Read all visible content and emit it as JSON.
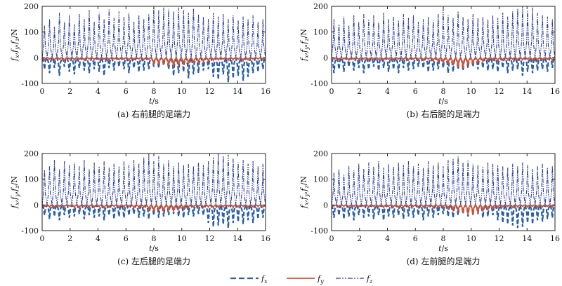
{
  "chart_data": [
    {
      "type": "line",
      "caption": "(a) 右前腿的足端力",
      "xlabel": "t/s",
      "ylabel": "fx,fy,fz/N",
      "xlim": [
        0,
        16
      ],
      "ylim": [
        -100,
        200
      ],
      "xticks": [
        0,
        2,
        4,
        6,
        8,
        10,
        12,
        14,
        16
      ],
      "yticks": [
        -100,
        0,
        100,
        200
      ],
      "fx_peaks": [
        -45,
        -60,
        -40,
        -70,
        -35,
        -55,
        -65,
        -40,
        -50,
        -60,
        -45,
        -55,
        -70,
        -40,
        -50,
        -35,
        -45,
        -60,
        -40,
        -55,
        -50,
        -45,
        -35,
        -40,
        -30,
        -45,
        -70,
        -60,
        -55,
        -80,
        -65,
        -60,
        -50,
        -45,
        -75,
        -85,
        -65,
        -95,
        -80,
        -70,
        -90,
        -75,
        -60,
        -55,
        -45
      ],
      "fy_peaks": [
        -8,
        -5,
        -10,
        -6,
        -12,
        -5,
        -8,
        -6,
        -10,
        -5,
        -8,
        -7,
        -6,
        -9,
        -5,
        -8,
        -6,
        -10,
        -7,
        -5,
        -9,
        -6,
        -28,
        -25,
        -20,
        -30,
        -35,
        -32,
        -28,
        -25,
        -22,
        -18,
        -15,
        -12,
        -10,
        -8,
        -6,
        -10,
        -8,
        -6,
        -12,
        -8,
        -6,
        -5,
        -8
      ],
      "fz_peaks": [
        125,
        150,
        120,
        175,
        140,
        165,
        130,
        170,
        150,
        185,
        140,
        175,
        150,
        190,
        155,
        180,
        160,
        175,
        140,
        165,
        150,
        170,
        195,
        185,
        195,
        190,
        180,
        195,
        185,
        175,
        190,
        170,
        160,
        150,
        175,
        160,
        170,
        150,
        165,
        145,
        160,
        150,
        165,
        140,
        150
      ]
    },
    {
      "type": "line",
      "caption": "(b) 右后腿的足端力",
      "xlabel": "t/s",
      "ylabel": "fx,fy,fz/N",
      "xlim": [
        0,
        16
      ],
      "ylim": [
        -100,
        200
      ],
      "xticks": [
        0,
        2,
        4,
        6,
        8,
        10,
        12,
        14,
        16
      ],
      "yticks": [
        -100,
        0,
        100,
        200
      ],
      "fx_peaks": [
        -60,
        -45,
        -55,
        -35,
        -50,
        -40,
        -60,
        -45,
        -35,
        -50,
        -40,
        -55,
        -45,
        -60,
        -40,
        -50,
        -45,
        -35,
        -40,
        -55,
        -50,
        -45,
        -40,
        -60,
        -55,
        -45,
        -50,
        -40,
        -35,
        -45,
        -40,
        -50,
        -45,
        -55,
        -40,
        -60,
        -50,
        -45,
        -70,
        -55,
        -60,
        -50,
        -45,
        -55,
        -40
      ],
      "fy_peaks": [
        -6,
        -8,
        -5,
        -10,
        -6,
        -8,
        -5,
        -9,
        -6,
        -7,
        -10,
        -6,
        -8,
        -5,
        -7,
        -9,
        -6,
        -8,
        -10,
        -6,
        -12,
        -15,
        -20,
        -25,
        -30,
        -35,
        -40,
        -30,
        -25,
        -20,
        -15,
        -10,
        -8,
        -12,
        -10,
        -8,
        -6,
        -10,
        -8,
        -6,
        -12,
        -10,
        -8,
        -6,
        -9
      ],
      "fz_peaks": [
        150,
        130,
        160,
        125,
        165,
        140,
        170,
        150,
        165,
        140,
        175,
        150,
        160,
        145,
        170,
        155,
        165,
        140,
        150,
        160,
        145,
        170,
        190,
        165,
        155,
        180,
        160,
        150,
        170,
        155,
        160,
        150,
        165,
        155,
        175,
        160,
        180,
        190,
        200,
        185,
        195,
        175,
        165,
        160,
        150
      ]
    },
    {
      "type": "line",
      "caption": "(c) 左后腿的足端力",
      "xlabel": "t/s",
      "ylabel": "fx,fy,fz/N",
      "xlim": [
        0,
        16
      ],
      "ylim": [
        -100,
        200
      ],
      "xticks": [
        0,
        2,
        4,
        6,
        8,
        10,
        12,
        14,
        16
      ],
      "yticks": [
        -100,
        0,
        100,
        200
      ],
      "fx_peaks": [
        -40,
        -55,
        -45,
        -60,
        -40,
        -50,
        -45,
        -35,
        -55,
        -40,
        -50,
        -45,
        -60,
        -40,
        -55,
        -45,
        -50,
        -40,
        -35,
        -50,
        -45,
        -55,
        -40,
        -50,
        -45,
        -40,
        -35,
        -45,
        -50,
        -40,
        -45,
        -35,
        -40,
        -70,
        -85,
        -80,
        -75,
        -90,
        -70,
        -65,
        -75,
        -60,
        -70,
        -55,
        -50
      ],
      "fy_peaks": [
        -6,
        -8,
        -10,
        -6,
        -8,
        -5,
        -9,
        -12,
        -6,
        -8,
        -10,
        -7,
        -12,
        -8,
        -6,
        -10,
        -8,
        -6,
        -12,
        -10,
        -8,
        -20,
        -25,
        -22,
        -28,
        -20,
        -25,
        -18,
        -15,
        -10,
        -8,
        -6,
        -10,
        -8,
        -12,
        -10,
        -8,
        -6,
        -10,
        -8,
        -6,
        -10,
        -8,
        -6,
        -8
      ],
      "fz_peaks": [
        135,
        150,
        175,
        140,
        170,
        155,
        165,
        150,
        175,
        140,
        165,
        150,
        170,
        145,
        160,
        150,
        170,
        155,
        175,
        160,
        185,
        200,
        170,
        190,
        160,
        175,
        150,
        165,
        155,
        160,
        150,
        165,
        155,
        170,
        185,
        200,
        190,
        195,
        180,
        165,
        175,
        160,
        170,
        150,
        160
      ]
    },
    {
      "type": "line",
      "caption": "(d) 左前腿的足端力",
      "xlabel": "t/s",
      "ylabel": "fx,fy,fz/N",
      "xlim": [
        0,
        16
      ],
      "ylim": [
        -100,
        200
      ],
      "xticks": [
        0,
        2,
        4,
        6,
        8,
        10,
        12,
        14,
        16
      ],
      "yticks": [
        -100,
        0,
        100,
        200
      ],
      "fx_peaks": [
        -50,
        -40,
        -55,
        -45,
        -60,
        -40,
        -50,
        -45,
        -55,
        -40,
        -60,
        -45,
        -50,
        -40,
        -55,
        -45,
        -50,
        -40,
        -60,
        -45,
        -50,
        -40,
        -35,
        -45,
        -50,
        -40,
        -35,
        -45,
        -40,
        -35,
        -50,
        -45,
        -40,
        -60,
        -70,
        -75,
        -80,
        -90,
        -85,
        -70,
        -75,
        -60,
        -65,
        -55,
        -50
      ],
      "fy_peaks": [
        -5,
        -8,
        -6,
        -10,
        -6,
        -8,
        -5,
        -9,
        -6,
        -8,
        -10,
        -6,
        -8,
        -12,
        -10,
        -8,
        -6,
        -10,
        -8,
        -6,
        -12,
        -10,
        -8,
        -15,
        -20,
        -25,
        -30,
        -35,
        -40,
        -30,
        -25,
        -20,
        -15,
        -10,
        -8,
        -6,
        -10,
        -8,
        -6,
        -8,
        -6,
        -10,
        -8,
        -6,
        -8
      ],
      "fz_peaks": [
        125,
        140,
        120,
        150,
        135,
        160,
        140,
        165,
        150,
        170,
        145,
        160,
        150,
        165,
        155,
        170,
        150,
        160,
        145,
        170,
        155,
        165,
        150,
        175,
        180,
        190,
        165,
        175,
        160,
        155,
        150,
        165,
        160,
        155,
        150,
        145,
        160,
        150,
        165,
        155,
        140,
        150,
        160,
        145,
        150
      ]
    }
  ],
  "legend": {
    "items": [
      {
        "key": "fx",
        "label": "f",
        "sub": "x",
        "color": "#2a5fa8",
        "dash": "8,4"
      },
      {
        "key": "fy",
        "label": "f",
        "sub": "y",
        "color": "#d9502a",
        "dash": ""
      },
      {
        "key": "fz",
        "label": "f",
        "sub": "z",
        "color": "#2b3f9a",
        "dash": "7,2,2,2,2,2"
      }
    ]
  }
}
